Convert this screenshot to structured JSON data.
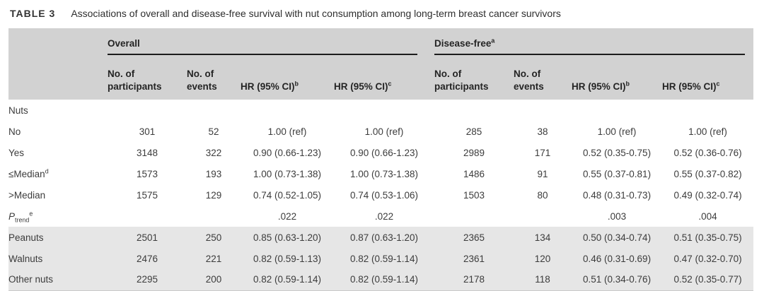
{
  "title": {
    "tag": "TABLE 3",
    "text": "Associations of overall and disease-free survival with nut consumption among long-term breast cancer survivors"
  },
  "colors": {
    "header_bg": "#d2d2d2",
    "band_bg": "#e6e6e6",
    "rule": "#1c1c1c",
    "text": "#3c3c3c"
  },
  "header": {
    "groups": [
      {
        "label": "Overall",
        "sup": ""
      },
      {
        "label": "Disease-free",
        "sup": "a"
      }
    ],
    "columns": [
      {
        "text": "No. of participants",
        "sup": ""
      },
      {
        "text": "No. of events",
        "sup": ""
      },
      {
        "text": "HR (95% CI)",
        "sup": "b"
      },
      {
        "text": "HR (95% CI)",
        "sup": "c"
      },
      {
        "text": "No. of participants",
        "sup": ""
      },
      {
        "text": "No. of events",
        "sup": ""
      },
      {
        "text": "HR (95% CI)",
        "sup": "b"
      },
      {
        "text": "HR (95% CI)",
        "sup": "c"
      }
    ]
  },
  "rows": [
    {
      "label": "Nuts",
      "sub": "",
      "sup": "",
      "italic": false,
      "indent": 0,
      "shaded": false,
      "cells": [
        "",
        "",
        "",
        "",
        "",
        "",
        "",
        ""
      ]
    },
    {
      "label": "No",
      "sub": "",
      "sup": "",
      "italic": false,
      "indent": 1,
      "shaded": false,
      "cells": [
        "301",
        "52",
        "1.00 (ref)",
        "1.00 (ref)",
        "285",
        "38",
        "1.00 (ref)",
        "1.00 (ref)"
      ]
    },
    {
      "label": "Yes",
      "sub": "",
      "sup": "",
      "italic": false,
      "indent": 1,
      "shaded": false,
      "cells": [
        "3148",
        "322",
        "0.90 (0.66-1.23)",
        "0.90 (0.66-1.23)",
        "2989",
        "171",
        "0.52 (0.35-0.75)",
        "0.52 (0.36-0.76)"
      ]
    },
    {
      "label": "≤Median",
      "sub": "",
      "sup": "d",
      "italic": false,
      "indent": 2,
      "shaded": false,
      "cells": [
        "1573",
        "193",
        "1.00 (0.73-1.38)",
        "1.00 (0.73-1.38)",
        "1486",
        "91",
        "0.55 (0.37-0.81)",
        "0.55 (0.37-0.82)"
      ]
    },
    {
      "label": ">Median",
      "sub": "",
      "sup": "",
      "italic": false,
      "indent": 2,
      "shaded": false,
      "cells": [
        "1575",
        "129",
        "0.74 (0.52-1.05)",
        "0.74 (0.53-1.06)",
        "1503",
        "80",
        "0.48 (0.31-0.73)",
        "0.49 (0.32-0.74)"
      ]
    },
    {
      "label": "P",
      "sub": "trend",
      "sup": "e",
      "italic": true,
      "indent": 1,
      "shaded": false,
      "cells": [
        "",
        "",
        ".022",
        ".022",
        "",
        "",
        ".003",
        ".004"
      ]
    },
    {
      "label": "Peanuts",
      "sub": "",
      "sup": "",
      "italic": false,
      "indent": 0,
      "shaded": true,
      "cells": [
        "2501",
        "250",
        "0.85 (0.63-1.20)",
        "0.87 (0.63-1.20)",
        "2365",
        "134",
        "0.50 (0.34-0.74)",
        "0.51 (0.35-0.75)"
      ]
    },
    {
      "label": "Walnuts",
      "sub": "",
      "sup": "",
      "italic": false,
      "indent": 0,
      "shaded": true,
      "cells": [
        "2476",
        "221",
        "0.82 (0.59-1.13)",
        "0.82 (0.59-1.14)",
        "2361",
        "120",
        "0.46 (0.31-0.69)",
        "0.47 (0.32-0.70)"
      ]
    },
    {
      "label": "Other nuts",
      "sub": "",
      "sup": "",
      "italic": false,
      "indent": 0,
      "shaded": true,
      "cells": [
        "2295",
        "200",
        "0.82 (0.59-1.14)",
        "0.82 (0.59-1.14)",
        "2178",
        "118",
        "0.51 (0.34-0.76)",
        "0.52 (0.35-0.77)"
      ]
    }
  ]
}
